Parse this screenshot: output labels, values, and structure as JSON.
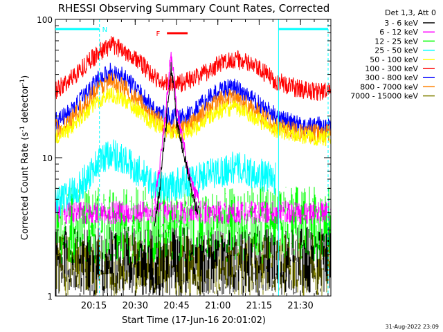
{
  "chart_data": {
    "type": "line",
    "title": "RHESSI Observing Summary Count Rates, Corrected",
    "xlabel": "Start Time (17-Jun-16 20:01:02)",
    "ylabel_main": "Corrected Count Rate (s",
    "ylabel_sup1": "-1",
    "ylabel_mid": " detector",
    "ylabel_sup2": "-1",
    "ylabel_end": ")",
    "yscale": "log",
    "ylim": [
      1,
      100
    ],
    "y_ticks": [
      {
        "label": "1",
        "value": 1
      },
      {
        "label": "10",
        "value": 10
      },
      {
        "label": "100",
        "value": 100
      }
    ],
    "xlim_minutes": [
      0,
      100
    ],
    "x_ticks": [
      {
        "label": "20:15",
        "minute": 13.97
      },
      {
        "label": "20:30",
        "minute": 28.97
      },
      {
        "label": "20:45",
        "minute": 43.97
      },
      {
        "label": "21:00",
        "minute": 58.97
      },
      {
        "label": "21:15",
        "minute": 73.97
      },
      {
        "label": "21:30",
        "minute": 88.97
      }
    ],
    "legend": {
      "title": "Det 1,3, Att 0",
      "placement": "right",
      "entries": [
        {
          "name": "3 - 6 keV",
          "color": "#000000"
        },
        {
          "name": "6 - 12 keV",
          "color": "#ff00ff"
        },
        {
          "name": "12 - 25 keV",
          "color": "#00ff00"
        },
        {
          "name": "25 - 50 keV",
          "color": "#00ffff"
        },
        {
          "name": "50 - 100 keV",
          "color": "#ffff00"
        },
        {
          "name": "100 - 300 keV",
          "color": "#ff0000"
        },
        {
          "name": "300 - 800 keV",
          "color": "#0000ff"
        },
        {
          "name": "800 - 7000 keV",
          "color": "#ff8000"
        },
        {
          "name": "7000 - 15000 keV",
          "color": "#808000"
        }
      ]
    },
    "series": [
      {
        "name": "100 - 300 keV",
        "color": "#ff0000",
        "noise": 0.07,
        "x": [
          0,
          5,
          10,
          15,
          20,
          25,
          30,
          35,
          38,
          42,
          46,
          50,
          55,
          60,
          65,
          70,
          75,
          80,
          85,
          90,
          95,
          100
        ],
        "y": [
          30,
          36,
          45,
          56,
          65,
          60,
          50,
          40,
          35,
          34,
          35,
          37,
          42,
          48,
          52,
          48,
          42,
          36,
          33,
          31,
          30,
          30
        ]
      },
      {
        "name": "300 - 800 keV",
        "color": "#0000ff",
        "noise": 0.07,
        "x": [
          0,
          5,
          10,
          15,
          20,
          25,
          30,
          35,
          40,
          45,
          50,
          55,
          60,
          65,
          70,
          75,
          80,
          85,
          90,
          95,
          100
        ],
        "y": [
          18,
          21,
          27,
          36,
          42,
          38,
          30,
          23,
          20,
          19,
          21,
          26,
          31,
          32,
          28,
          23,
          20,
          18,
          17,
          17,
          17
        ]
      },
      {
        "name": "800 - 7000 keV",
        "color": "#ff8000",
        "noise": 0.07,
        "x": [
          0,
          5,
          10,
          15,
          20,
          25,
          30,
          35,
          40,
          45,
          50,
          55,
          60,
          65,
          70,
          75,
          80,
          85,
          90,
          95,
          100
        ],
        "y": [
          16,
          18,
          23,
          31,
          36,
          32,
          26,
          20,
          17,
          16,
          18,
          22,
          26,
          27,
          24,
          20,
          17,
          16,
          15,
          15,
          15
        ]
      },
      {
        "name": "50 - 100 keV",
        "color": "#ffff00",
        "noise": 0.06,
        "x": [
          0,
          5,
          10,
          15,
          20,
          25,
          30,
          35,
          40,
          45,
          50,
          55,
          60,
          65,
          70,
          75,
          80,
          85,
          90,
          95,
          100
        ],
        "y": [
          14,
          16,
          20,
          25,
          29,
          26,
          22,
          18,
          16,
          15,
          16,
          19,
          22,
          23,
          21,
          18,
          16,
          15,
          14,
          14,
          14
        ]
      },
      {
        "name": "25 - 50 keV",
        "color": "#00ffff",
        "noise": 0.12,
        "xmax": 80,
        "x": [
          0,
          5,
          10,
          15,
          20,
          25,
          30,
          35,
          40,
          45,
          50,
          55,
          60,
          65,
          70,
          75,
          80
        ],
        "y": [
          4.5,
          5.5,
          6.5,
          9.0,
          11.0,
          9.5,
          8.0,
          6.5,
          6.0,
          6.5,
          7.0,
          7.5,
          8.0,
          8.5,
          8.0,
          7.5,
          7.0
        ]
      },
      {
        "name": "6 - 12 keV",
        "color": "#ff00ff",
        "noise": 0.05,
        "x": [
          36,
          38,
          40,
          41,
          42,
          43,
          44,
          46,
          48,
          50,
          52
        ],
        "y": [
          4.5,
          9.0,
          20,
          35,
          55,
          40,
          22,
          14,
          8,
          6,
          5
        ]
      },
      {
        "name": "3 - 6 keV",
        "color": "#000000",
        "noise": 0.05,
        "x": [
          36,
          38,
          40,
          41,
          42,
          43,
          44,
          46,
          48,
          50,
          52
        ],
        "y": [
          3.0,
          6.0,
          15,
          26,
          45,
          30,
          18,
          12,
          8,
          5,
          4
        ]
      }
    ],
    "noise_bands": [
      {
        "name": "7000 - 15000 keV",
        "color": "#808000",
        "range": [
          1,
          2.8
        ]
      },
      {
        "name": "12 - 25 keV",
        "color": "#00ff00",
        "range": [
          1.7,
          6.2
        ]
      },
      {
        "name": "6 - 12 keV",
        "color": "#ff00ff",
        "range": [
          3.3,
          4.9
        ]
      },
      {
        "name": "3 - 6 keV",
        "color": "#000000",
        "range": [
          1,
          3.2
        ]
      }
    ],
    "annotations": [
      {
        "label": "N",
        "color": "#00ffff",
        "minute_range": [
          0,
          16
        ]
      },
      {
        "label": "",
        "color": "#00ffff",
        "minute_range": [
          81,
          99
        ]
      },
      {
        "label": "F",
        "color": "#ff0000",
        "minute_range": [
          39,
          48
        ]
      }
    ],
    "cyan_markers_minutes": [
      16,
      81,
      99
    ]
  },
  "footer": {
    "timestamp": "31-Aug-2022 23:09"
  }
}
